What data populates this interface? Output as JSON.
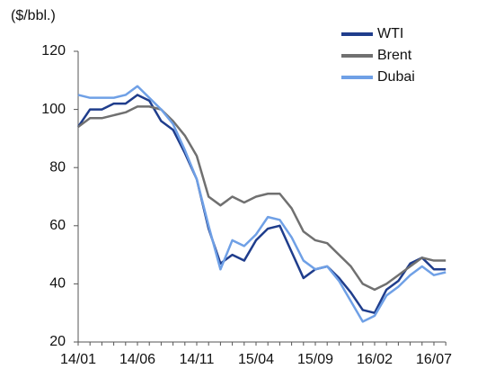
{
  "chart_data": {
    "type": "line",
    "y_label": "($/bbl.)",
    "categories": [
      "14/01",
      null,
      null,
      null,
      null,
      "14/06",
      null,
      null,
      null,
      null,
      "14/11",
      null,
      null,
      null,
      null,
      "15/04",
      null,
      null,
      null,
      null,
      "15/09",
      null,
      null,
      null,
      null,
      "16/02",
      null,
      null,
      null,
      null,
      "16/07",
      null
    ],
    "series": [
      {
        "name": "WTI",
        "color": "#1f3d8c",
        "values": [
          94,
          100,
          100,
          102,
          102,
          105,
          103,
          96,
          93,
          85,
          76,
          59,
          47,
          50,
          48,
          55,
          59,
          60,
          51,
          42,
          45,
          46,
          42,
          37,
          31,
          30,
          38,
          41,
          47,
          49,
          45,
          45
        ]
      },
      {
        "name": "Brent",
        "color": "#707070",
        "values": [
          94,
          97,
          97,
          98,
          99,
          101,
          101,
          100,
          96,
          91,
          84,
          70,
          67,
          70,
          68,
          70,
          71,
          71,
          66,
          58,
          55,
          54,
          50,
          46,
          40,
          38,
          40,
          43,
          46,
          49,
          48,
          48
        ]
      },
      {
        "name": "Dubai",
        "color": "#6fa0e6",
        "values": [
          105,
          104,
          104,
          104,
          105,
          108,
          104,
          100,
          95,
          86,
          76,
          60,
          45,
          55,
          53,
          57,
          63,
          62,
          56,
          48,
          45,
          46,
          41,
          34,
          27,
          29,
          36,
          39,
          43,
          46,
          43,
          44
        ]
      }
    ],
    "ylim": [
      20,
      120
    ],
    "yticks": [
      20,
      40,
      60,
      80,
      100,
      120
    ],
    "grid": false,
    "legend": "top-right"
  }
}
